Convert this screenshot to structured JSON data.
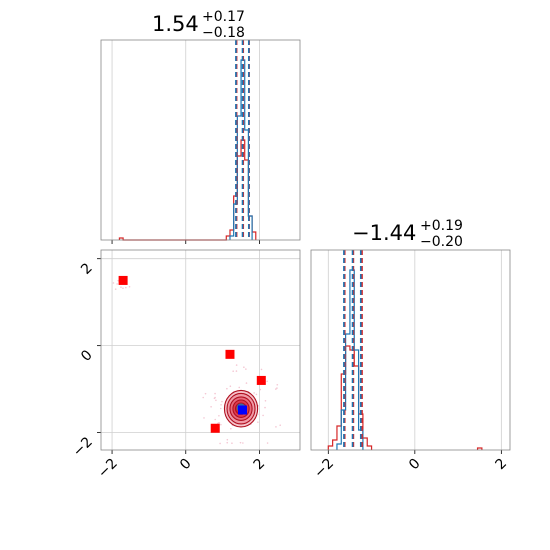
{
  "chart_data": {
    "type": "corner",
    "parameters": [
      {
        "title_value": "1.54",
        "title_plus": "+0.17",
        "title_minus": "−0.18",
        "range": [
          -2.3,
          3.1
        ],
        "ticks": [
          -2,
          0,
          2
        ],
        "tick_labels": [
          "−2",
          "0",
          "2"
        ]
      },
      {
        "title_value": "∔1.44",
        "title_plus": "+0.19",
        "title_minus": "−0.20",
        "range": [
          -2.4,
          2.2
        ],
        "ticks": [
          -2,
          0,
          2
        ],
        "tick_labels": [
          "−2",
          "0",
          "2"
        ]
      }
    ],
    "series": [
      {
        "name": "",
        "color": "#1f77b4",
        "quantiles_p1": [
          1.36,
          1.54,
          1.71
        ],
        "quantiles_p2": [
          -1.64,
          -1.44,
          -1.25
        ],
        "hist_p1": {
          "bins": [
            1.2,
            1.3,
            1.4,
            1.5,
            1.6,
            1.7,
            1.8
          ],
          "counts": [
            0.02,
            0.18,
            0.62,
            0.9,
            0.55,
            0.12
          ]
        },
        "hist_p2": {
          "bins": [
            -1.8,
            -1.7,
            -1.6,
            -1.5,
            -1.4,
            -1.3,
            -1.2
          ],
          "counts": [
            0.03,
            0.2,
            0.58,
            0.9,
            0.5,
            0.1
          ]
        },
        "point": [
          1.54,
          -1.48
        ]
      },
      {
        "name": "",
        "color": "#d62728",
        "quantiles_p1": [
          1.38,
          1.56,
          1.72
        ],
        "quantiles_p2": [
          -1.62,
          -1.42,
          -1.22
        ],
        "hist_p1": {
          "bins": [
            -1.8,
            -1.7,
            1.1,
            1.2,
            1.3,
            1.4,
            1.5,
            1.6,
            1.7,
            1.8,
            1.9
          ],
          "counts": [
            0.01,
            0,
            0.02,
            0.05,
            0.22,
            0.42,
            0.5,
            0.4,
            0.12,
            0.04
          ]
        },
        "hist_p2": {
          "bins": [
            -2.0,
            -1.9,
            -1.8,
            -1.7,
            -1.6,
            -1.5,
            -1.4,
            -1.3,
            -1.2,
            -1.1,
            -1.0
          ],
          "counts": [
            0.02,
            0.05,
            0.12,
            0.38,
            0.52,
            0.5,
            0.42,
            0.18,
            0.06,
            0.02
          ]
        },
        "hist_p2_outlier": [
          1.5,
          0.01
        ],
        "contour_center": [
          1.5,
          -1.45
        ],
        "contour_radii": [
          [
            0.45,
            0.42
          ],
          [
            0.38,
            0.35
          ],
          [
            0.3,
            0.27
          ],
          [
            0.22,
            0.2
          ],
          [
            0.15,
            0.13
          ]
        ]
      }
    ],
    "red_markers": [
      [
        -1.7,
        1.5
      ],
      [
        1.2,
        -0.2
      ],
      [
        2.05,
        -0.8
      ],
      [
        0.8,
        -1.9
      ]
    ],
    "grid": true
  }
}
